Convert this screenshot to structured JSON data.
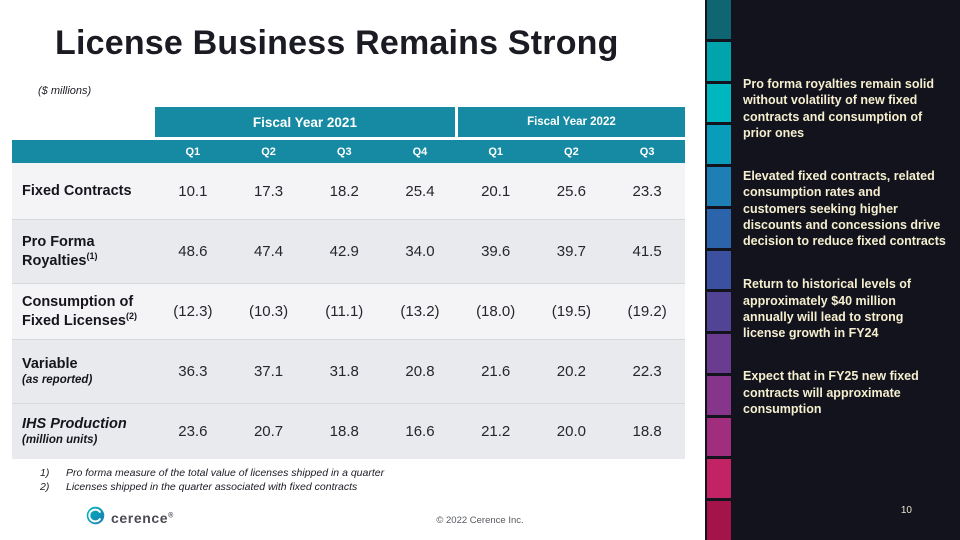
{
  "slide": {
    "title": "License Business Remains Strong",
    "units_note": "($ millions)",
    "footnotes": [
      {
        "num": "1)",
        "text": "Pro forma measure of the total value of licenses shipped in a quarter"
      },
      {
        "num": "2)",
        "text": "Licenses shipped in the quarter associated with fixed contracts"
      }
    ],
    "copyright": "© 2022 Cerence Inc.",
    "logo_text": "cerence",
    "logo_reg": "®"
  },
  "table": {
    "year_headers": [
      {
        "label": "Fiscal Year 2021",
        "span": 4
      },
      {
        "label": "Fiscal Year 2022",
        "span": 3
      }
    ],
    "quarter_headers": [
      "Q1",
      "Q2",
      "Q3",
      "Q4",
      "Q1",
      "Q2",
      "Q3"
    ],
    "rows": [
      {
        "label": "Fixed Contracts",
        "sup": "",
        "sublabel": "",
        "values": [
          "10.1",
          "17.3",
          "18.2",
          "25.4",
          "20.1",
          "25.6",
          "23.3"
        ]
      },
      {
        "label": "Pro Forma Royalties",
        "sup": "(1)",
        "sublabel": "",
        "values": [
          "48.6",
          "47.4",
          "42.9",
          "34.0",
          "39.6",
          "39.7",
          "41.5"
        ]
      },
      {
        "label": "Consumption of Fixed Licenses",
        "sup": "(2)",
        "sublabel": "",
        "values": [
          "(12.3)",
          "(10.3)",
          "(11.1)",
          "(13.2)",
          "(18.0)",
          "(19.5)",
          "(19.2)"
        ]
      },
      {
        "label": "Variable",
        "sup": "",
        "sublabel": "(as reported)",
        "values": [
          "36.3",
          "37.1",
          "31.8",
          "20.8",
          "21.6",
          "20.2",
          "22.3"
        ]
      },
      {
        "label": "IHS Production",
        "sup": "",
        "sublabel": "(million units)",
        "values": [
          "23.6",
          "20.7",
          "18.8",
          "16.6",
          "21.2",
          "20.0",
          "18.8"
        ]
      }
    ]
  },
  "sidebar": {
    "bullets": [
      "Pro forma royalties remain solid without volatility of new fixed contracts and consumption of prior ones",
      "Elevated fixed contracts, related consumption rates and customers seeking higher discounts and concessions drive decision to reduce fixed contracts",
      "Return to historical levels of approximately $40 million annually will lead to strong license growth in FY24",
      "Expect that in FY25 new fixed contracts will approximate consumption"
    ],
    "page_number": "10"
  },
  "colors": {
    "table_header": "#1689a3",
    "sidebar_bg": "#13131d",
    "sidebar_text": "#f5efcf",
    "strip": [
      "#0f6672",
      "#00a4ad",
      "#00b7c0",
      "#0a9dbb",
      "#1d7fb3",
      "#2b64aa",
      "#3b519f",
      "#514494",
      "#693c90",
      "#87358a",
      "#a02d7e",
      "#c22365",
      "#a5134b"
    ]
  }
}
